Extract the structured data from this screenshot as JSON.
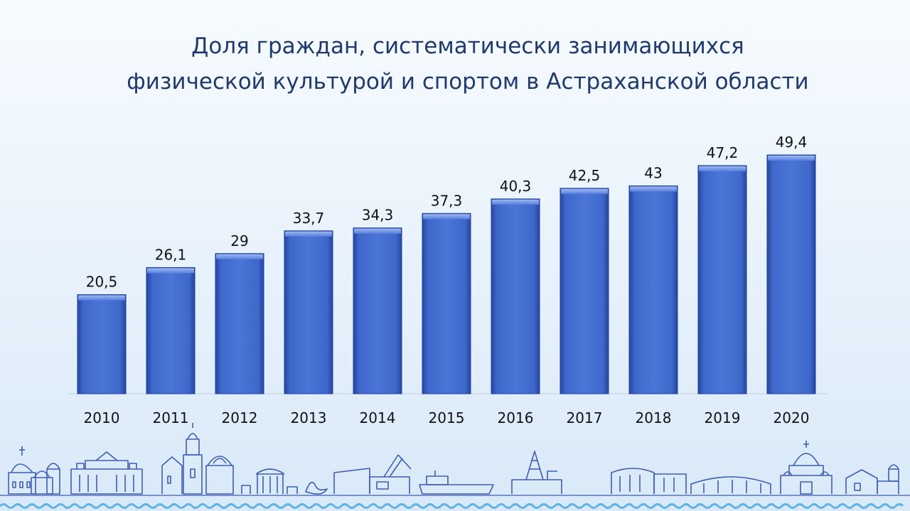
{
  "title_lines": [
    "Доля граждан, систематически занимающихся",
    "физической культурой и спортом в Астраханской области"
  ],
  "colors": {
    "bar_top": "#6f93e6",
    "bar_main": "#3c64c8",
    "bar_edge": "#1e3f9c",
    "title": "#1f3a6e",
    "label": "#111111",
    "skyline": "#3e5db2",
    "wave": "#5fb3e6"
  },
  "chart_data": {
    "type": "bar",
    "title": "Доля граждан, систематически занимающихся физической культурой и спортом в Астраханской области",
    "categories": [
      "2010",
      "2011",
      "2012",
      "2013",
      "2014",
      "2015",
      "2016",
      "2017",
      "2018",
      "2019",
      "2020"
    ],
    "values": [
      20.5,
      26.1,
      29,
      33.7,
      34.3,
      37.3,
      40.3,
      42.5,
      43,
      47.2,
      49.4
    ],
    "data_labels": [
      "20,5",
      "26,1",
      "29",
      "33,7",
      "34,3",
      "37,3",
      "40,3",
      "42,5",
      "43",
      "47,2",
      "49,4"
    ],
    "xlabel": "",
    "ylabel": "",
    "ylim": [
      0,
      50
    ],
    "grid": false,
    "legend": "none"
  }
}
